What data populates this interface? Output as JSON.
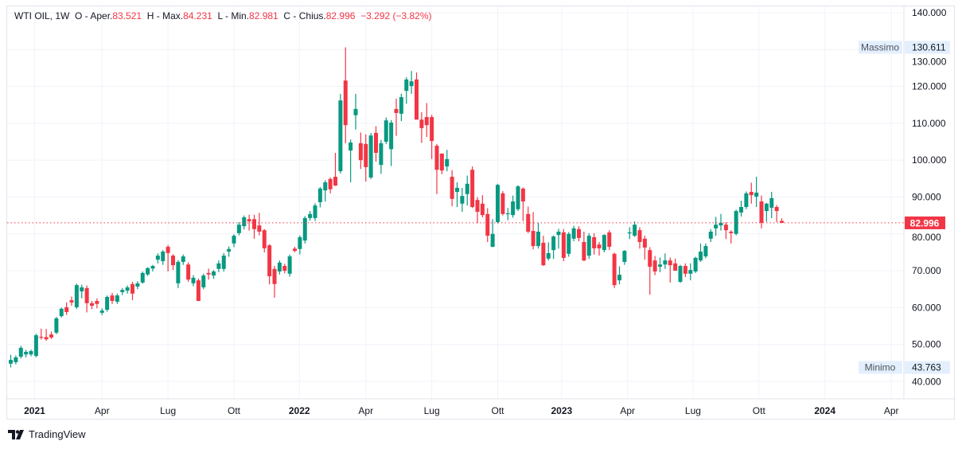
{
  "header": {
    "symbol": "WTI OIL, 1W",
    "open_label": "O - Aper.",
    "open": "83.521",
    "high_label": "H - Max.",
    "high": "84.231",
    "low_label": "L - Min.",
    "low": "82.981",
    "close_label": "C - Chius.",
    "close": "82.996",
    "change": "−3.292 (−3.82%)"
  },
  "branding": {
    "name": "TradingView"
  },
  "colors": {
    "up": "#089981",
    "down": "#f23645",
    "grid": "#f0f3fa",
    "text": "#131722",
    "badge_bg": "#e3effd"
  },
  "chart_data": {
    "type": "candlestick",
    "title": "WTI OIL, 1W",
    "interval": "1W",
    "ylim": [
      35,
      142
    ],
    "y_ticks": [
      "140.000",
      "130.000",
      "120.000",
      "110.000",
      "100.000",
      "90.000",
      "80.000",
      "70.000",
      "60.000",
      "50.000",
      "40.000"
    ],
    "x_ticks": [
      {
        "label": "2021",
        "week": 4.7,
        "bold": true
      },
      {
        "label": "Apr",
        "week": 18
      },
      {
        "label": "Lug",
        "week": 31
      },
      {
        "label": "Ott",
        "week": 44
      },
      {
        "label": "2022",
        "week": 56.9,
        "bold": true
      },
      {
        "label": "Apr",
        "week": 70
      },
      {
        "label": "Lug",
        "week": 83
      },
      {
        "label": "Ott",
        "week": 96
      },
      {
        "label": "2023",
        "week": 108.6,
        "bold": true
      },
      {
        "label": "Apr",
        "week": 121.6
      },
      {
        "label": "Lug",
        "week": 134.5
      },
      {
        "label": "Ott",
        "week": 147.5
      },
      {
        "label": "2024",
        "week": 160.5,
        "bold": true
      },
      {
        "label": "Apr",
        "week": 173.6
      }
    ],
    "last_price": {
      "value": 82.996,
      "label": "82.996"
    },
    "max_marker": {
      "label": "Massimo",
      "value": 130.611,
      "value_label": "130.611"
    },
    "min_marker": {
      "label": "Minimo",
      "value": 43.763,
      "value_label": "43.763"
    },
    "candles_ohlc": [
      [
        44.8,
        47.2,
        43.763,
        45.8
      ],
      [
        45.2,
        47,
        44.6,
        46.5
      ],
      [
        46.7,
        49.6,
        46.2,
        49.1
      ],
      [
        47.3,
        48.5,
        46.5,
        48
      ],
      [
        47.3,
        48.6,
        46.8,
        48.2
      ],
      [
        46.9,
        52.9,
        46.5,
        52.5
      ],
      [
        52.1,
        54.3,
        51.3,
        51.9
      ],
      [
        52,
        54.2,
        51,
        51.4
      ],
      [
        52.7,
        53.5,
        51.5,
        51.9
      ],
      [
        53.2,
        57.5,
        52.8,
        57.1
      ],
      [
        57.7,
        60,
        57.3,
        59.7
      ],
      [
        60.1,
        61.4,
        58,
        58.8
      ],
      [
        62,
        63,
        60.5,
        61.4
      ],
      [
        60.1,
        66.5,
        59.6,
        66.1
      ],
      [
        64.4,
        66.2,
        62.5,
        65.5
      ],
      [
        65.3,
        66,
        58.7,
        61.2
      ],
      [
        61.2,
        61.8,
        59.6,
        60.5
      ],
      [
        61.8,
        62.5,
        59.8,
        61
      ],
      [
        58.6,
        59.8,
        58,
        59.2
      ],
      [
        59.4,
        63.3,
        58.9,
        62.9
      ],
      [
        63.3,
        64,
        61,
        61.8
      ],
      [
        61.6,
        63.8,
        61,
        63.3
      ],
      [
        64.2,
        65.3,
        63.4,
        64.8
      ],
      [
        64.6,
        66,
        63.8,
        65.5
      ],
      [
        66.4,
        67,
        62,
        63.8
      ],
      [
        65.7,
        67.2,
        65,
        66.6
      ],
      [
        66.8,
        69.8,
        66.5,
        69.4
      ],
      [
        69,
        71,
        68.6,
        70.7
      ],
      [
        70.6,
        71.6,
        69.8,
        71.3
      ],
      [
        73,
        74.7,
        72,
        74.1
      ],
      [
        72.6,
        75.6,
        71.6,
        75.2
      ],
      [
        76.5,
        77,
        69.8,
        74.8
      ],
      [
        74.1,
        74.5,
        70.2,
        71.5
      ],
      [
        66.6,
        72.9,
        65.3,
        72.4
      ],
      [
        72.4,
        74.4,
        71.6,
        73.9
      ],
      [
        71.7,
        72.3,
        67,
        67.6
      ],
      [
        66.6,
        68.8,
        65.8,
        68.1
      ],
      [
        67.4,
        67.9,
        61.8,
        61.8
      ],
      [
        65.5,
        69.2,
        65,
        68.7
      ],
      [
        69.4,
        70.6,
        67.6,
        69
      ],
      [
        68.7,
        70.2,
        67.8,
        69.8
      ],
      [
        70.5,
        72.8,
        69.6,
        72
      ],
      [
        70.5,
        74.8,
        69.8,
        74.1
      ],
      [
        75.2,
        76.6,
        73.8,
        75.9
      ],
      [
        77.4,
        79.9,
        76.4,
        79.5
      ],
      [
        80.2,
        83.2,
        79.6,
        82.5
      ],
      [
        82.1,
        85,
        81.2,
        84.5
      ],
      [
        84,
        85.2,
        80.9,
        83.4
      ],
      [
        84,
        85.2,
        78.7,
        81.3
      ],
      [
        82.3,
        85.7,
        79.6,
        80.6
      ],
      [
        81,
        81.3,
        75,
        76.1
      ],
      [
        76.9,
        77.2,
        66.3,
        68.5
      ],
      [
        70.5,
        71.3,
        62.7,
        66.4
      ],
      [
        69.8,
        72.8,
        69,
        72.2
      ],
      [
        71.3,
        71.9,
        69.3,
        70
      ],
      [
        69.2,
        74.4,
        68.4,
        73.9
      ],
      [
        76,
        76.5,
        75,
        75.4
      ],
      [
        75.9,
        79.6,
        74.4,
        79.1
      ],
      [
        78.2,
        84.8,
        77.4,
        84.3
      ],
      [
        84.3,
        86.2,
        83.6,
        85.4
      ],
      [
        84.3,
        88.3,
        83.5,
        87.7
      ],
      [
        88.6,
        92.7,
        87.2,
        92.3
      ],
      [
        91.8,
        94.6,
        88.8,
        94
      ],
      [
        94.9,
        95.3,
        91,
        92.1
      ],
      [
        95.5,
        102,
        93,
        93.1
      ],
      [
        97,
        118,
        96.4,
        116.2
      ],
      [
        121.6,
        130.611,
        104.6,
        109.5
      ],
      [
        102.6,
        105.6,
        94,
        104.8
      ],
      [
        112.2,
        118,
        108.3,
        113.9
      ],
      [
        104.6,
        107.5,
        97.6,
        100
      ],
      [
        104.4,
        107,
        94.2,
        98.1
      ],
      [
        95.3,
        107.4,
        94.9,
        106.7
      ],
      [
        107.4,
        109.2,
        99.6,
        102
      ],
      [
        98.7,
        105.5,
        96.3,
        104.6
      ],
      [
        105,
        111.6,
        104.4,
        110.8
      ],
      [
        103,
        110.9,
        98.4,
        110.2
      ],
      [
        113.9,
        116.7,
        106.6,
        112.8
      ],
      [
        112.6,
        118,
        110.6,
        117.1
      ],
      [
        118.8,
        122.5,
        115.3,
        121.9
      ],
      [
        120.1,
        124.2,
        118,
        121.4
      ],
      [
        121.9,
        123.8,
        111.3,
        111
      ],
      [
        111,
        113,
        104.7,
        108.7
      ],
      [
        111.7,
        115.5,
        106.3,
        109.5
      ],
      [
        111.7,
        112.3,
        100.3,
        105.2
      ],
      [
        103.9,
        104.4,
        90.8,
        97.4
      ],
      [
        101.8,
        101.4,
        96.2,
        97.2
      ],
      [
        98.3,
        102.8,
        97,
        100.3
      ],
      [
        95.5,
        97.3,
        87.5,
        89.5
      ],
      [
        91.4,
        94,
        87.3,
        92.5
      ],
      [
        88.2,
        92.5,
        86,
        90.3
      ],
      [
        90.8,
        95.8,
        87.7,
        93.6
      ],
      [
        97.4,
        98.3,
        87,
        87.3
      ],
      [
        89.2,
        90,
        82.9,
        86
      ],
      [
        88.2,
        90.5,
        84.5,
        85.1
      ],
      [
        85.4,
        87,
        77.8,
        79.5
      ],
      [
        76.5,
        84,
        76.4,
        80
      ],
      [
        83.2,
        93.6,
        82.8,
        93.3
      ],
      [
        91,
        91.6,
        85,
        85.4
      ],
      [
        85.6,
        87,
        83.7,
        85.6
      ],
      [
        85.1,
        90.4,
        84.4,
        88.8
      ],
      [
        86.7,
        93.2,
        86.2,
        92.9
      ],
      [
        92.3,
        92.6,
        83.5,
        88.8
      ],
      [
        85.4,
        87.4,
        80.2,
        80.6
      ],
      [
        80.8,
        85.9,
        75.8,
        76.7
      ],
      [
        76.7,
        83,
        76,
        80.6
      ],
      [
        77.6,
        79.5,
        71.3,
        71.5
      ],
      [
        73.3,
        77.7,
        72.8,
        74.8
      ],
      [
        75.6,
        79.6,
        73.2,
        79.3
      ],
      [
        79.7,
        81.4,
        76,
        80.6
      ],
      [
        80.4,
        81.3,
        72.6,
        73.5
      ],
      [
        74.6,
        80.5,
        73.8,
        80
      ],
      [
        78.7,
        82.2,
        78,
        81.5
      ],
      [
        81.3,
        82.1,
        78,
        78.9
      ],
      [
        77.8,
        80.6,
        72.6,
        72.8
      ],
      [
        74.1,
        80.2,
        73.2,
        79.5
      ],
      [
        79.1,
        80.2,
        74.4,
        76.1
      ],
      [
        77.1,
        77.8,
        74.1,
        76.1
      ],
      [
        75.6,
        79.9,
        75,
        79.7
      ],
      [
        80.4,
        81,
        75.6,
        76.5
      ],
      [
        74.6,
        74.9,
        65.3,
        66.1
      ],
      [
        67.4,
        71.2,
        66.3,
        68.9
      ],
      [
        72.4,
        75.6,
        71.6,
        75.4
      ],
      [
        80.4,
        81.8,
        78.6,
        80.4
      ],
      [
        79.5,
        83.4,
        79.2,
        82.5
      ],
      [
        81,
        81.8,
        76,
        77.8
      ],
      [
        78.7,
        79.5,
        73,
        76.3
      ],
      [
        75.6,
        76.4,
        63.5,
        71.1
      ],
      [
        72.8,
        74,
        68.8,
        69.8
      ],
      [
        71.1,
        73.6,
        69.6,
        71.7
      ],
      [
        71.7,
        74.7,
        70.5,
        72.8
      ],
      [
        72.8,
        73.6,
        66.8,
        71.5
      ],
      [
        72,
        73.3,
        70.8,
        70
      ],
      [
        67,
        71.6,
        66.7,
        71.3
      ],
      [
        71.3,
        72,
        68.3,
        69.2
      ],
      [
        69.2,
        72,
        67.4,
        70.2
      ],
      [
        69.8,
        73.8,
        69.4,
        73.5
      ],
      [
        72.8,
        77.4,
        72.4,
        75.2
      ],
      [
        73.9,
        77.4,
        73.4,
        76.7
      ],
      [
        78.7,
        81.3,
        77.8,
        80.6
      ],
      [
        81.5,
        84.6,
        79.5,
        82.5
      ],
      [
        82.3,
        85.4,
        80.9,
        83
      ],
      [
        82.5,
        83.2,
        78.6,
        81
      ],
      [
        80.6,
        81,
        77.4,
        80.2
      ],
      [
        80,
        86.6,
        79.6,
        86.2
      ],
      [
        85.8,
        89,
        84.7,
        87.3
      ],
      [
        87.3,
        91.5,
        86.7,
        91
      ],
      [
        91.4,
        93.9,
        88.2,
        90.5
      ],
      [
        90.1,
        95.5,
        87.3,
        91.2
      ],
      [
        88.8,
        90.4,
        81.5,
        83
      ],
      [
        86.2,
        88.4,
        83.3,
        88.2
      ],
      [
        87.1,
        91.4,
        84.3,
        89.7
      ],
      [
        87.3,
        87.8,
        83.2,
        86.2
      ],
      [
        83.521,
        84.231,
        82.981,
        82.996
      ]
    ]
  }
}
